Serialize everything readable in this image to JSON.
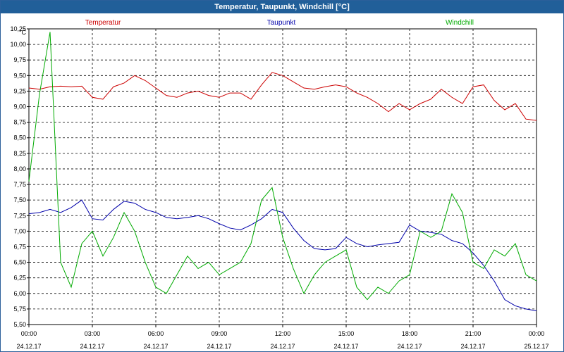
{
  "window": {
    "title": "Temperatur, Taupunkt, Windchill [°C]"
  },
  "chart_data": {
    "type": "line",
    "title": "Temperatur, Taupunkt, Windchill [°C]",
    "ylabel": "°C",
    "ylim": [
      5.5,
      10.25
    ],
    "yticks": [
      "10,25",
      "10,00",
      "9,75",
      "9,50",
      "9,25",
      "9,00",
      "8,75",
      "8,50",
      "8,25",
      "8,00",
      "7,75",
      "7,50",
      "7,25",
      "7,00",
      "6,75",
      "6,50",
      "6,25",
      "6,00",
      "5,75",
      "5,50"
    ],
    "xlim": [
      0,
      24
    ],
    "xticks": [
      {
        "time": "00:00",
        "date": "24.12.17"
      },
      {
        "time": "03:00",
        "date": "24.12.17"
      },
      {
        "time": "06:00",
        "date": "24.12.17"
      },
      {
        "time": "09:00",
        "date": "24.12.17"
      },
      {
        "time": "12:00",
        "date": "24.12.17"
      },
      {
        "time": "15:00",
        "date": "24.12.17"
      },
      {
        "time": "18:00",
        "date": "24.12.17"
      },
      {
        "time": "21:00",
        "date": "24.12.17"
      },
      {
        "time": "00:00",
        "date": "25.12.17"
      }
    ],
    "grid": true,
    "legend_position": "top",
    "x_hours": [
      0,
      0.5,
      1,
      1.5,
      2,
      2.5,
      3,
      3.5,
      4,
      4.5,
      5,
      5.5,
      6,
      6.5,
      7,
      7.5,
      8,
      8.5,
      9,
      9.5,
      10,
      10.5,
      11,
      11.5,
      12,
      12.5,
      13,
      13.5,
      14,
      14.5,
      15,
      15.5,
      16,
      16.5,
      17,
      17.5,
      18,
      18.5,
      19,
      19.5,
      20,
      20.5,
      21,
      21.5,
      22,
      22.5,
      23,
      23.5,
      24
    ],
    "series": [
      {
        "name": "Temperatur",
        "color": "#cc0000",
        "values": [
          9.3,
          9.28,
          9.32,
          9.33,
          9.32,
          9.33,
          9.15,
          9.12,
          9.32,
          9.38,
          9.5,
          9.42,
          9.3,
          9.18,
          9.15,
          9.22,
          9.25,
          9.18,
          9.15,
          9.22,
          9.22,
          9.12,
          9.35,
          9.55,
          9.5,
          9.4,
          9.3,
          9.28,
          9.32,
          9.35,
          9.32,
          9.22,
          9.15,
          9.05,
          8.92,
          9.05,
          8.95,
          9.05,
          9.12,
          9.28,
          9.15,
          9.05,
          9.32,
          9.35,
          9.1,
          8.95,
          9.05,
          8.8,
          8.78
        ]
      },
      {
        "name": "Taupunkt",
        "color": "#0000aa",
        "values": [
          7.28,
          7.3,
          7.35,
          7.3,
          7.38,
          7.5,
          7.2,
          7.18,
          7.35,
          7.48,
          7.45,
          7.35,
          7.3,
          7.22,
          7.2,
          7.22,
          7.25,
          7.2,
          7.12,
          7.05,
          7.02,
          7.1,
          7.2,
          7.35,
          7.3,
          7.05,
          6.85,
          6.72,
          6.7,
          6.72,
          6.9,
          6.8,
          6.75,
          6.78,
          6.8,
          6.82,
          7.1,
          7.0,
          6.98,
          6.95,
          6.85,
          6.8,
          6.65,
          6.45,
          6.2,
          5.9,
          5.8,
          5.75,
          5.72
        ]
      },
      {
        "name": "Windchill",
        "color": "#00aa00",
        "values": [
          7.8,
          9.2,
          10.2,
          6.5,
          6.1,
          6.8,
          7.0,
          6.6,
          6.9,
          7.3,
          7.0,
          6.5,
          6.1,
          6.0,
          6.3,
          6.6,
          6.4,
          6.5,
          6.3,
          6.4,
          6.5,
          6.8,
          7.5,
          7.7,
          6.9,
          6.4,
          6.0,
          6.3,
          6.5,
          6.6,
          6.7,
          6.1,
          5.9,
          6.1,
          6.0,
          6.2,
          6.3,
          7.0,
          6.9,
          7.0,
          7.6,
          7.3,
          6.5,
          6.4,
          6.7,
          6.6,
          6.8,
          6.3,
          6.2
        ]
      }
    ]
  }
}
